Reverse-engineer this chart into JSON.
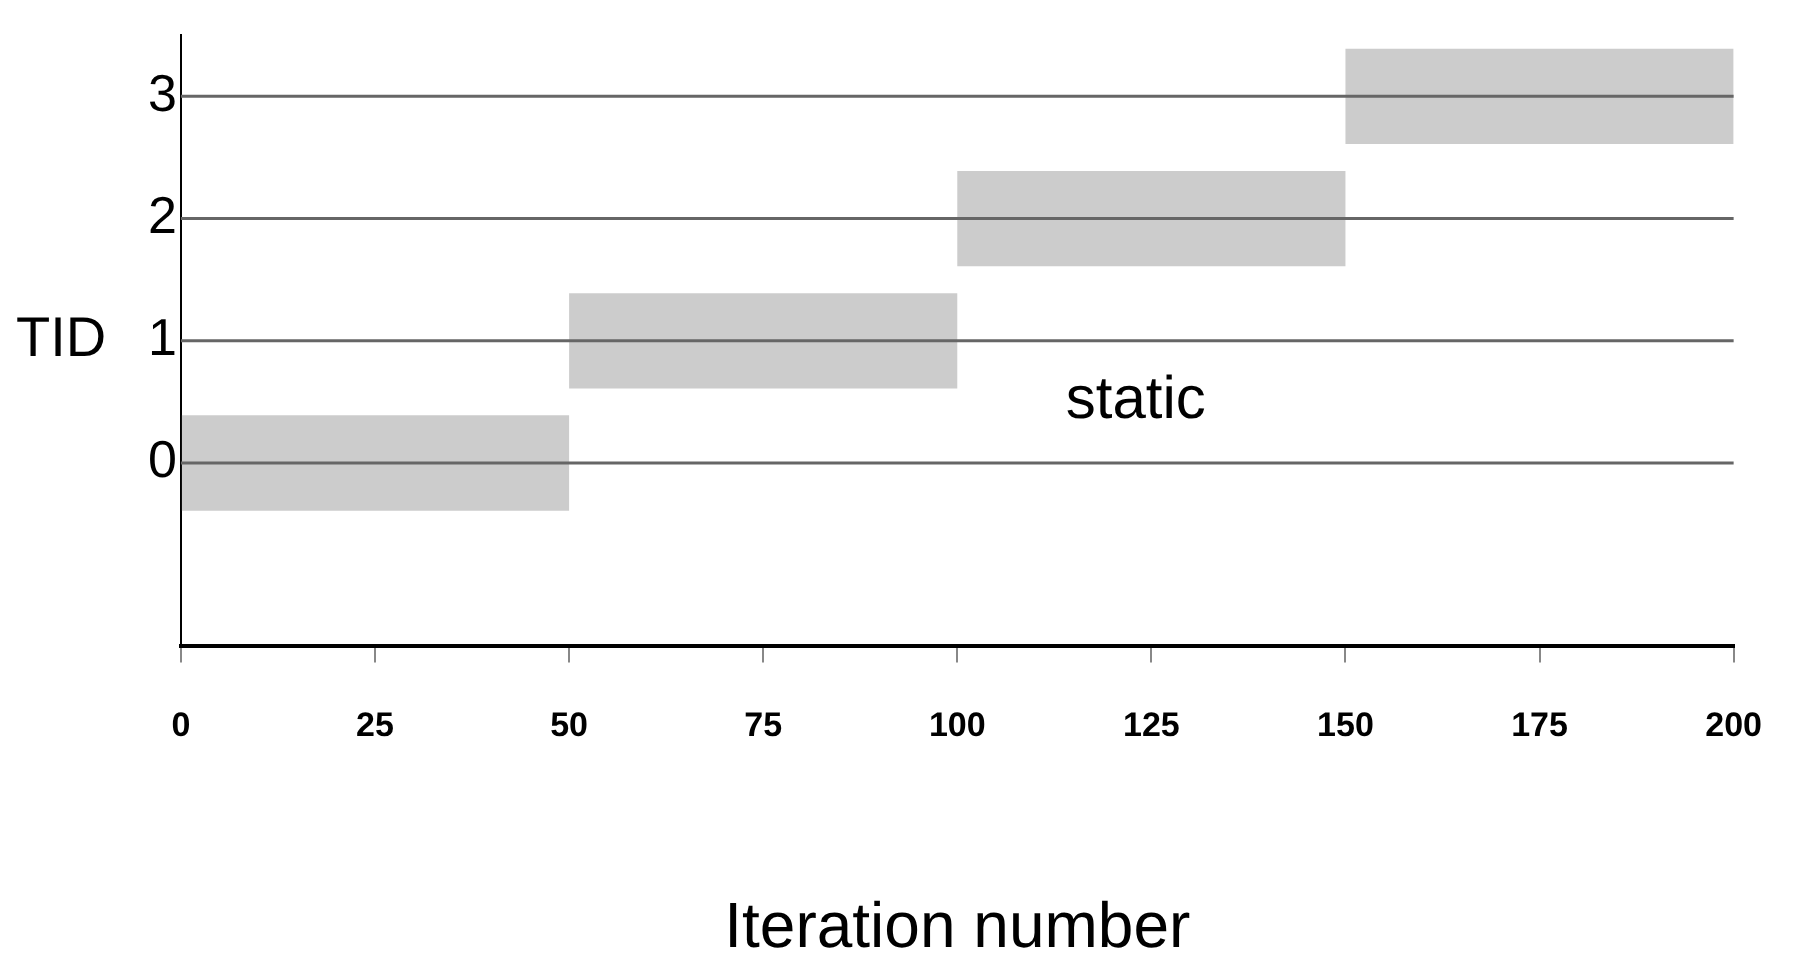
{
  "chart_data": {
    "type": "bar",
    "orientation": "horizontal",
    "xlabel": "Iteration number",
    "ylabel": "TID",
    "categories": [
      "3",
      "2",
      "1",
      "0",
      null
    ],
    "values": [
      50,
      50,
      50,
      50,
      null
    ],
    "base": [
      150,
      100,
      50,
      0,
      null
    ],
    "color": "#cccccc",
    "xlim": [
      0,
      200
    ],
    "xticks": [
      0,
      25,
      50,
      75,
      100,
      125,
      150,
      175,
      200
    ],
    "ref_lines": [
      {
        "axis": "y",
        "value": "3",
        "color": "#666666"
      },
      {
        "axis": "y",
        "value": "2",
        "color": "#666666"
      },
      {
        "axis": "y",
        "value": "1",
        "color": "#666666"
      },
      {
        "axis": "y",
        "value": "0",
        "color": "#666666"
      }
    ],
    "annotations": [
      "static"
    ],
    "grid": false,
    "legend": false
  }
}
